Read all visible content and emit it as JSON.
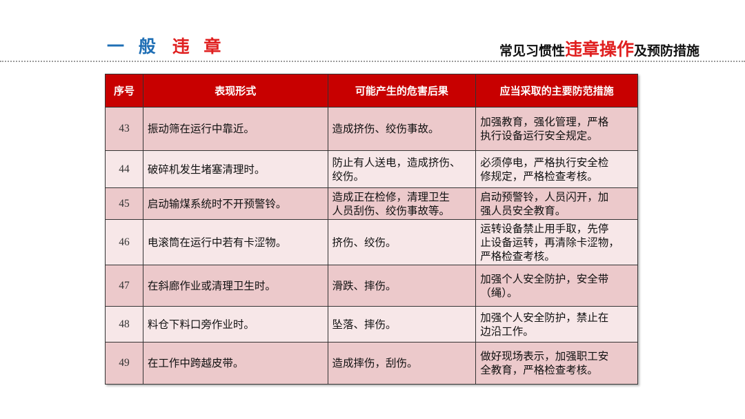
{
  "header": {
    "left_title_blue": "一 般",
    "left_title_red": "违 章",
    "right_title_prefix": "常见习惯性",
    "right_title_highlight": "违章操作",
    "right_title_suffix": "及预防措施"
  },
  "table": {
    "columns": [
      "序号",
      "表现形式",
      "可能产生的危害后果",
      "应当采取的主要防范措施"
    ],
    "rows": [
      {
        "no": "43",
        "form": "振动筛在运行中靠近。",
        "harm": "造成挤伤、绞伤事故。",
        "measure": "加强教育，强化管理，严格\n执行设备运行安全规定。"
      },
      {
        "no": "44",
        "form": "破碎机发生堵塞清理时。",
        "harm": "防止有人送电，造成挤伤、\n绞伤。",
        "measure": "必须停电，严格执行安全检\n修规定，严格检查考核。"
      },
      {
        "no": "45",
        "form": "启动输煤系统时不开预警铃。",
        "harm": "造成正在检修，清理卫生\n人员刮伤、绞伤事故等。",
        "measure": "启动预警铃，人员闪开，加\n强人员安全教育。"
      },
      {
        "no": "46",
        "form": "电滚筒在运行中若有卡涩物。",
        "harm": "挤伤、绞伤。",
        "measure": "运转设备禁止用手取，先停\n止设备运转，再清除卡涩物，\n严格检查考核。"
      },
      {
        "no": "47",
        "form": "在斜廊作业或清理卫生时。",
        "harm": "滑跌、摔伤。",
        "measure": "加强个人安全防护，安全带\n（绳）。"
      },
      {
        "no": "48",
        "form": "料仓下料口旁作业时。",
        "harm": "坠落、摔伤。",
        "measure": "加强个人安全防护，禁止在\n边沿工作。"
      },
      {
        "no": "49",
        "form": "在工作中跨越皮带。",
        "harm": "造成摔伤，刮伤。",
        "measure": "做好现场表示，加强职工安\n全教育，严格检查考核。"
      }
    ]
  },
  "colors": {
    "header_red": "#c80000",
    "accent_blue": "#1f6fb5",
    "accent_red": "#e02020"
  }
}
